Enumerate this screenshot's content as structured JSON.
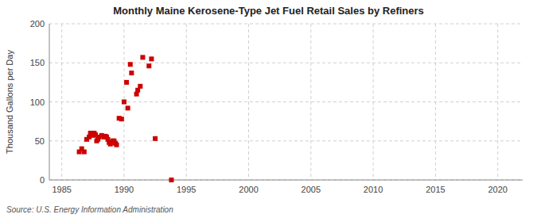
{
  "chart_data": {
    "type": "scatter",
    "title": "Monthly Maine Kerosene-Type Jet Fuel Retail Sales by Refiners",
    "y_label": "Thousand Gallons per Day",
    "source": "Source: U.S. Energy Information Administration",
    "color": "#cc0000",
    "marker": "square",
    "grid": true,
    "xlim": [
      1984,
      2022
    ],
    "ylim": [
      0,
      200
    ],
    "xticks": [
      1985,
      1990,
      1995,
      2000,
      2005,
      2010,
      2015,
      2020
    ],
    "yticks": [
      0,
      50,
      100,
      150,
      200
    ],
    "x": [
      1986.4,
      1986.6,
      1986.8,
      1987.0,
      1987.2,
      1987.3,
      1987.5,
      1987.6,
      1987.7,
      1987.8,
      1987.9,
      1988.0,
      1988.2,
      1988.4,
      1988.5,
      1988.6,
      1988.7,
      1988.8,
      1988.9,
      1989.0,
      1989.1,
      1989.2,
      1989.3,
      1989.4,
      1989.6,
      1989.8,
      1990.0,
      1990.2,
      1990.3,
      1990.5,
      1990.6,
      1991.0,
      1991.1,
      1991.3,
      1991.5,
      1992.0,
      1992.2,
      1992.5,
      1993.8
    ],
    "values": [
      36,
      40,
      36,
      52,
      55,
      60,
      57,
      60,
      58,
      50,
      52,
      55,
      57,
      55,
      56,
      55,
      52,
      48,
      46,
      48,
      50,
      50,
      47,
      45,
      79,
      78,
      100,
      125,
      92,
      148,
      137,
      110,
      115,
      120,
      157,
      146,
      155,
      53,
      0
    ]
  }
}
